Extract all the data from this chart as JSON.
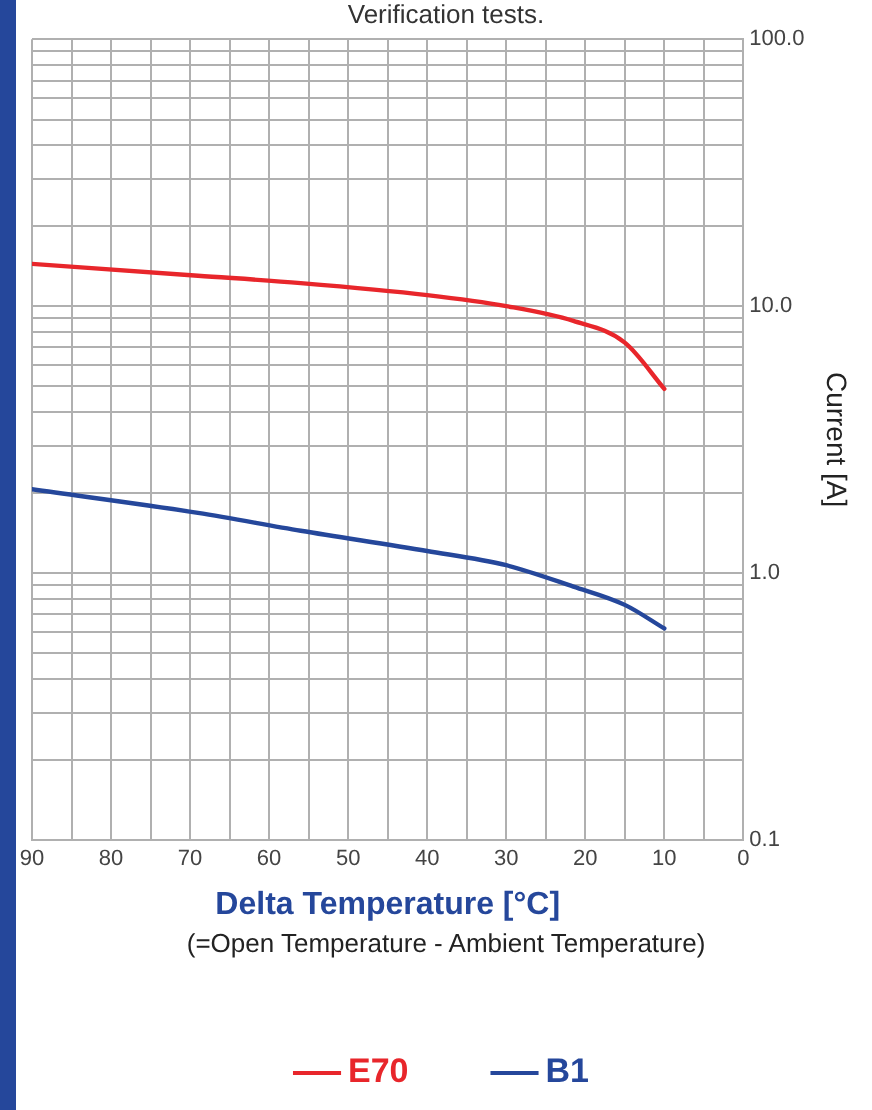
{
  "chart_data": {
    "type": "line",
    "title": "Verification tests.",
    "xlabel": "Delta Temperature [°C]",
    "ylabel": "Current [A]",
    "annotations": [
      "(=Open Temperature - Ambient Temperature)"
    ],
    "x": [
      90,
      69,
      56,
      40,
      30,
      21.5,
      15,
      10
    ],
    "series": [
      {
        "name": "E70",
        "color": "#e8262b",
        "values": [
          14.4,
          13.0,
          12.2,
          11.0,
          10.0,
          8.8,
          7.3,
          4.9
        ]
      },
      {
        "name": "B1",
        "color": "#25479b",
        "values": [
          2.06,
          1.68,
          1.44,
          1.21,
          1.07,
          0.89,
          0.76,
          0.62
        ]
      }
    ],
    "log": "y",
    "xlim": [
      90,
      0
    ],
    "ylim": [
      0.1,
      100
    ],
    "xticks": [
      0,
      {
        "value": 5,
        "label": null
      },
      10,
      {
        "value": 15,
        "label": null
      },
      20,
      {
        "value": 25,
        "label": null
      },
      30,
      {
        "value": 35,
        "label": null
      },
      40,
      {
        "value": 45,
        "label": null
      },
      50,
      {
        "value": 55,
        "label": null
      },
      60,
      {
        "value": 65,
        "label": null
      },
      70,
      {
        "value": 75,
        "label": null
      },
      80,
      {
        "value": 85,
        "label": null
      },
      90
    ],
    "yticks": [
      0.1,
      {
        "value": 0.2,
        "label": null
      },
      {
        "value": 0.3,
        "label": null
      },
      {
        "value": 0.4,
        "label": null
      },
      {
        "value": 0.5,
        "label": null
      },
      {
        "value": 0.6,
        "label": null
      },
      {
        "value": 0.7,
        "label": null
      },
      {
        "value": 0.8,
        "label": null
      },
      {
        "value": 0.9,
        "label": null
      },
      {
        "value": 1,
        "label": "1.0"
      },
      {
        "value": 2,
        "label": null
      },
      {
        "value": 3,
        "label": null
      },
      {
        "value": 4,
        "label": null
      },
      {
        "value": 5,
        "label": null
      },
      {
        "value": 6,
        "label": null
      },
      {
        "value": 7,
        "label": null
      },
      {
        "value": 8,
        "label": null
      },
      {
        "value": 9,
        "label": null
      },
      {
        "value": 10,
        "label": "10.0"
      },
      {
        "value": 20,
        "label": null
      },
      {
        "value": 30,
        "label": null
      },
      {
        "value": 40,
        "label": null
      },
      {
        "value": 50,
        "label": null
      },
      {
        "value": 60,
        "label": null
      },
      {
        "value": 70,
        "label": null
      },
      {
        "value": 80,
        "label": null
      },
      {
        "value": 90,
        "label": null
      },
      {
        "value": 100,
        "label": "100.0"
      }
    ],
    "grid": true,
    "legend": "bottom",
    "marker": "none",
    "line_style": "solid"
  }
}
